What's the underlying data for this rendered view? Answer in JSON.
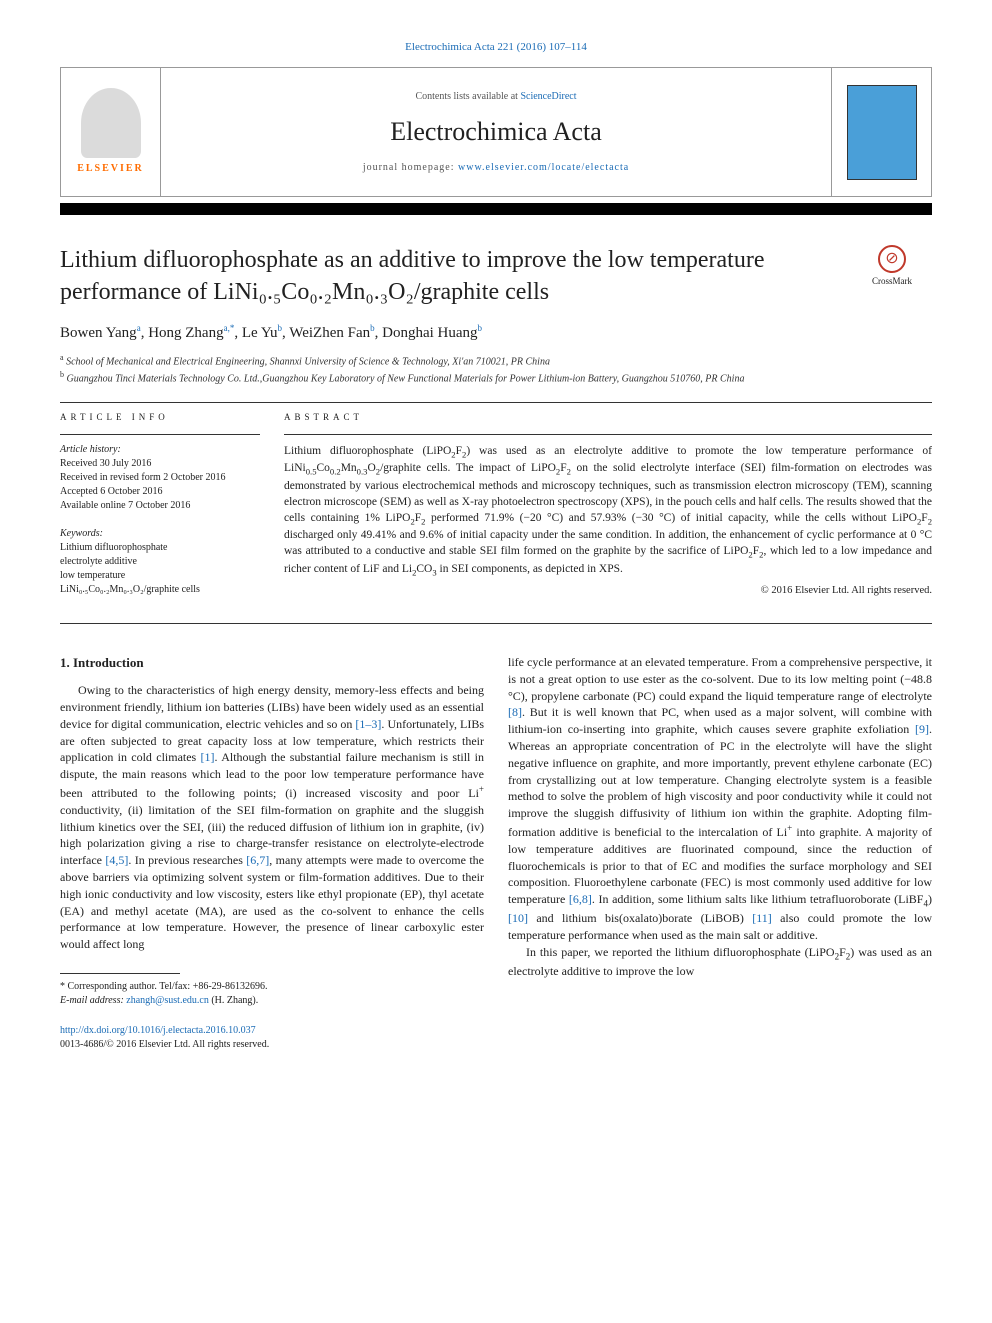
{
  "journal_ref": "Electrochimica Acta 221 (2016) 107–114",
  "header": {
    "contents_prefix": "Contents lists available at ",
    "contents_link": "ScienceDirect",
    "journal_name": "Electrochimica Acta",
    "homepage_prefix": "journal homepage: ",
    "homepage_url": "www.elsevier.com/locate/electacta",
    "elsevier": "ELSEVIER"
  },
  "crossmark_label": "CrossMark",
  "title": "Lithium difluorophosphate as an additive to improve the low temperature performance of LiNi₀.₅Co₀.₂Mn₀.₃O₂/graphite cells",
  "authors_html": "Bowen Yang<sup>a</sup>, Hong Zhang<sup>a,*</sup>, Le Yu<sup>b</sup>, WeiZhen Fan<sup>b</sup>, Donghai Huang<sup>b</sup>",
  "affiliations": [
    "a School of Mechanical and Electrical Engineering, Shannxi University of Science & Technology, Xi'an 710021, PR China",
    "b Guangzhou Tinci Materials Technology Co. Ltd.,Guangzhou Key Laboratory of New Functional Materials for Power Lithium-ion Battery, Guangzhou 510760, PR China"
  ],
  "article_info_label": "ARTICLE INFO",
  "abstract_label": "ABSTRACT",
  "history_label": "Article history:",
  "history": [
    "Received 30 July 2016",
    "Received in revised form 2 October 2016",
    "Accepted 6 October 2016",
    "Available online 7 October 2016"
  ],
  "keywords_label": "Keywords:",
  "keywords": [
    "Lithium difluorophosphate",
    "electrolyte additive",
    "low temperature",
    "LiNi₀.₅Co₀.₂Mn₀.₃O₂/graphite cells"
  ],
  "abstract_html": "Lithium difluorophosphate (LiPO<sub>2</sub>F<sub>2</sub>) was used as an electrolyte additive to promote the low temperature performance of LiNi<sub>0.5</sub>Co<sub>0.2</sub>Mn<sub>0.3</sub>O<sub>2</sub>/graphite cells. The impact of LiPO<sub>2</sub>F<sub>2</sub> on the solid electrolyte interface (SEI) film-formation on electrodes was demonstrated by various electrochemical methods and microscopy techniques, such as transmission electron microscopy (TEM), scanning electron microscope (SEM) as well as X-ray photoelectron spectroscopy (XPS), in the pouch cells and half cells. The results showed that the cells containing 1% LiPO<sub>2</sub>F<sub>2</sub> performed 71.9% (−20 °C) and 57.93% (−30 °C) of initial capacity, while the cells without LiPO<sub>2</sub>F<sub>2</sub> discharged only 49.41% and 9.6% of initial capacity under the same condition. In addition, the enhancement of cyclic performance at 0 °C was attributed to a conductive and stable SEI film formed on the graphite by the sacrifice of LiPO<sub>2</sub>F<sub>2</sub>, which led to a low impedance and richer content of LiF and Li<sub>2</sub>CO<sub>3</sub> in SEI components, as depicted in XPS.",
  "copyright": "© 2016 Elsevier Ltd. All rights reserved.",
  "intro_heading": "1. Introduction",
  "intro_para1_html": "Owing to the characteristics of high energy density, memory-less effects and being environment friendly, lithium ion batteries (LIBs) have been widely used as an essential device for digital communication, electric vehicles and so on <span class=\"ref-link\">[1–3]</span>. Unfortunately, LIBs are often subjected to great capacity loss at low temperature, which restricts their application in cold climates <span class=\"ref-link\">[1]</span>. Although the substantial failure mechanism is still in dispute, the main reasons which lead to the poor low temperature performance have been attributed to the following points; (i) increased viscosity and poor Li<sup>+</sup> conductivity, (ii) limitation of the SEI film-formation on graphite and the sluggish lithium kinetics over the SEI, (iii) the reduced diffusion of lithium ion in graphite, (iv) high polarization giving a rise to charge-transfer resistance on electrolyte-electrode interface <span class=\"ref-link\">[4,5]</span>. In previous researches <span class=\"ref-link\">[6,7]</span>, many attempts were made to overcome the above barriers via optimizing solvent system or film-formation additives. Due to their high ionic conductivity and low viscosity, esters like ethyl propionate (EP), thyl acetate (EA) and methyl acetate (MA), are used as the co-solvent to enhance the cells performance at low temperature. However, the presence of linear carboxylic ester would affect long",
  "intro_para1b_html": "life cycle performance at an elevated temperature. From a comprehensive perspective, it is not a great option to use ester as the co-solvent. Due to its low melting point (−48.8 °C), propylene carbonate (PC) could expand the liquid temperature range of electrolyte <span class=\"ref-link\">[8]</span>. But it is well known that PC, when used as a major solvent, will combine with lithium-ion co-inserting into graphite, which causes severe graphite exfoliation <span class=\"ref-link\">[9]</span>. Whereas an appropriate concentration of PC in the electrolyte will have the slight negative influence on graphite, and more importantly, prevent ethylene carbonate (EC) from crystallizing out at low temperature. Changing electrolyte system is a feasible method to solve the problem of high viscosity and poor conductivity while it could not improve the sluggish diffusivity of lithium ion within the graphite. Adopting film-formation additive is beneficial to the intercalation of Li<sup>+</sup> into graphite. A majority of low temperature additives are fluorinated compound, since the reduction of fluorochemicals is prior to that of EC and modifies the surface morphology and SEI composition. Fluoroethylene carbonate (FEC) is most commonly used additive for low temperature <span class=\"ref-link\">[6,8]</span>. In addition, some lithium salts like lithium tetrafluoroborate (LiBF<sub>4</sub>) <span class=\"ref-link\">[10]</span> and lithium bis(oxalato)borate (LiBOB) <span class=\"ref-link\">[11]</span> also could promote the low temperature performance when used as the main salt or additive.",
  "intro_para2_html": "In this paper, we reported the lithium difluorophosphate (LiPO<sub>2</sub>F<sub>2</sub>) was used as an electrolyte additive to improve the low",
  "footnote": {
    "corr": "* Corresponding author. Tel/fax: +86-29-86132696.",
    "email_label": "E-mail address: ",
    "email": "zhangh@sust.edu.cn",
    "email_suffix": " (H. Zhang)."
  },
  "bottom": {
    "doi": "http://dx.doi.org/10.1016/j.electacta.2016.10.037",
    "issn": "0013-4686/© 2016 Elsevier Ltd. All rights reserved."
  },
  "colors": {
    "link": "#1a6bb5",
    "elsevier_orange": "#ff6c00",
    "cover_blue": "#4a9fd8",
    "crossmark_red": "#c0392b"
  }
}
